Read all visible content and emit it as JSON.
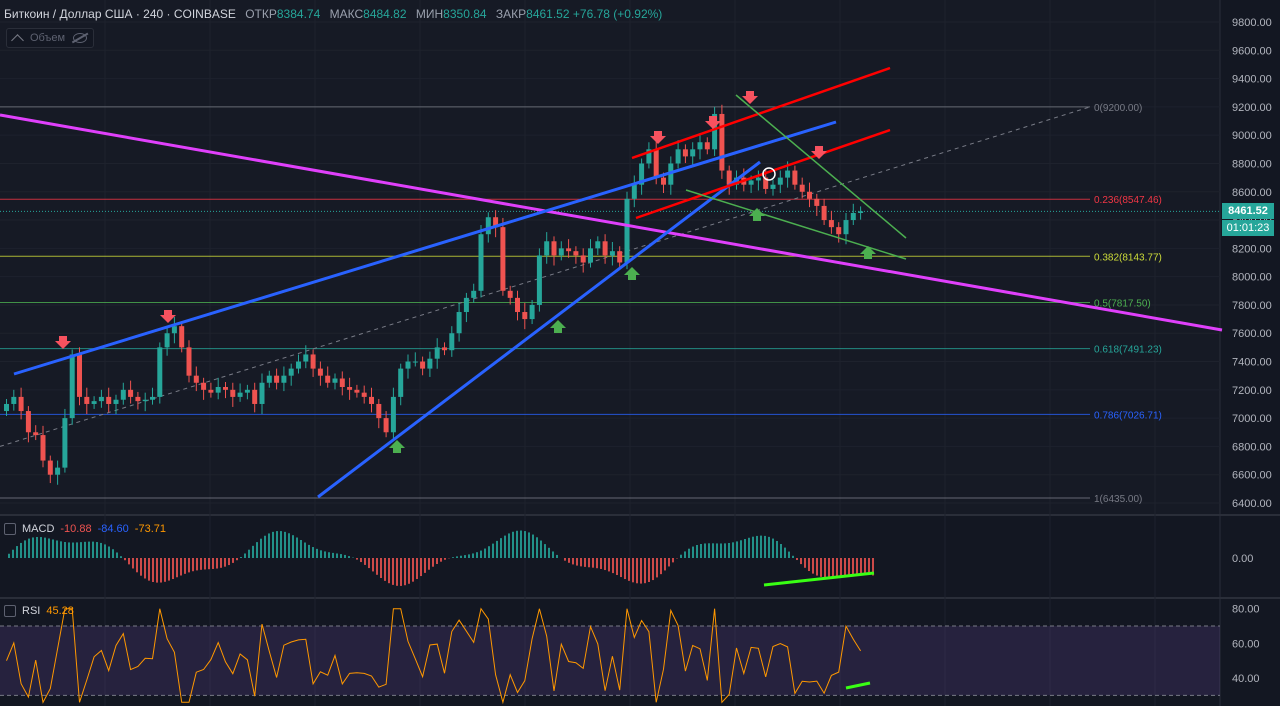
{
  "header": {
    "symbol": "Биткоин / Доллар США · 240 · COINBASE",
    "open_label": "ОТКР",
    "open": "8384.74",
    "high_label": "МАКС",
    "high": "8484.82",
    "low_label": "МИН",
    "low": "8350.84",
    "close_label": "ЗАКР",
    "close": "8461.52",
    "change": "+76.78 (+0.92%)"
  },
  "volume_toggle": {
    "label": "Объем"
  },
  "price_badge": {
    "price": "8461.52",
    "countdown": "01:01:23",
    "color": "#26a69a"
  },
  "chart_data": {
    "type": "candlestick",
    "y_axis": {
      "range": [
        6350,
        9900
      ],
      "ticks": [
        "9800.00",
        "9600.00",
        "9400.00",
        "9200.00",
        "9000.00",
        "8800.00",
        "8600.00",
        "8400.00",
        "8200.00",
        "8000.00",
        "7800.00",
        "7600.00",
        "7400.00",
        "7200.00",
        "7000.00",
        "6800.00",
        "6600.00",
        "6400.00"
      ]
    },
    "ohlc_path_closes": [
      7100,
      7150,
      7050,
      6900,
      6880,
      6700,
      6600,
      6650,
      7000,
      7450,
      7150,
      7100,
      7120,
      7150,
      7100,
      7130,
      7200,
      7150,
      7120,
      7130,
      7150,
      7500,
      7600,
      7650,
      7500,
      7300,
      7250,
      7200,
      7180,
      7220,
      7200,
      7150,
      7180,
      7200,
      7100,
      7250,
      7300,
      7250,
      7300,
      7350,
      7400,
      7450,
      7350,
      7300,
      7250,
      7280,
      7220,
      7200,
      7180,
      7150,
      7100,
      7000,
      6900,
      7150,
      7350,
      7400,
      7400,
      7350,
      7420,
      7500,
      7480,
      7600,
      7750,
      7850,
      7900,
      8300,
      8420,
      8350,
      7900,
      7850,
      7750,
      7700,
      7800,
      8150,
      8250,
      8150,
      8200,
      8180,
      8150,
      8100,
      8200,
      8250,
      8150,
      8180,
      8100,
      8550,
      8650,
      8800,
      8900,
      8700,
      8650,
      8800,
      8900,
      8850,
      8900,
      8950,
      8900,
      9150,
      8750,
      8650,
      8700,
      8650,
      8680,
      8700,
      8620,
      8650,
      8700,
      8750,
      8650,
      8600,
      8550,
      8500,
      8400,
      8350,
      8300,
      8400,
      8450,
      8461.52
    ],
    "fibonacci": [
      {
        "label": "0(9200.00)",
        "color": "#787b86"
      },
      {
        "label": "0.236(8547.46)",
        "color": "#f23645"
      },
      {
        "label": "0.382(8143.77)",
        "color": "#cddc39"
      },
      {
        "label": "0.5(7817.50)",
        "color": "#4caf50"
      },
      {
        "label": "0.618(7491.23)",
        "color": "#26a69a"
      },
      {
        "label": "0.786(7026.71)",
        "color": "#2962ff"
      },
      {
        "label": "1(6435.00)",
        "color": "#787b86"
      }
    ],
    "macd": {
      "name": "MACD",
      "values": [
        "-10.88",
        "-84.60",
        "-73.71"
      ],
      "axis_tick": "0.00"
    },
    "rsi": {
      "name": "RSI",
      "value": "45.28",
      "axis_ticks": [
        "80.00",
        "60.00",
        "40.00"
      ]
    },
    "colors": {
      "up": "#26a69a",
      "down": "#ef5350",
      "support": "#2962ff",
      "resistance": "#ff0000",
      "downtrend": "#e040fb",
      "wedge": "#4caf50"
    }
  }
}
